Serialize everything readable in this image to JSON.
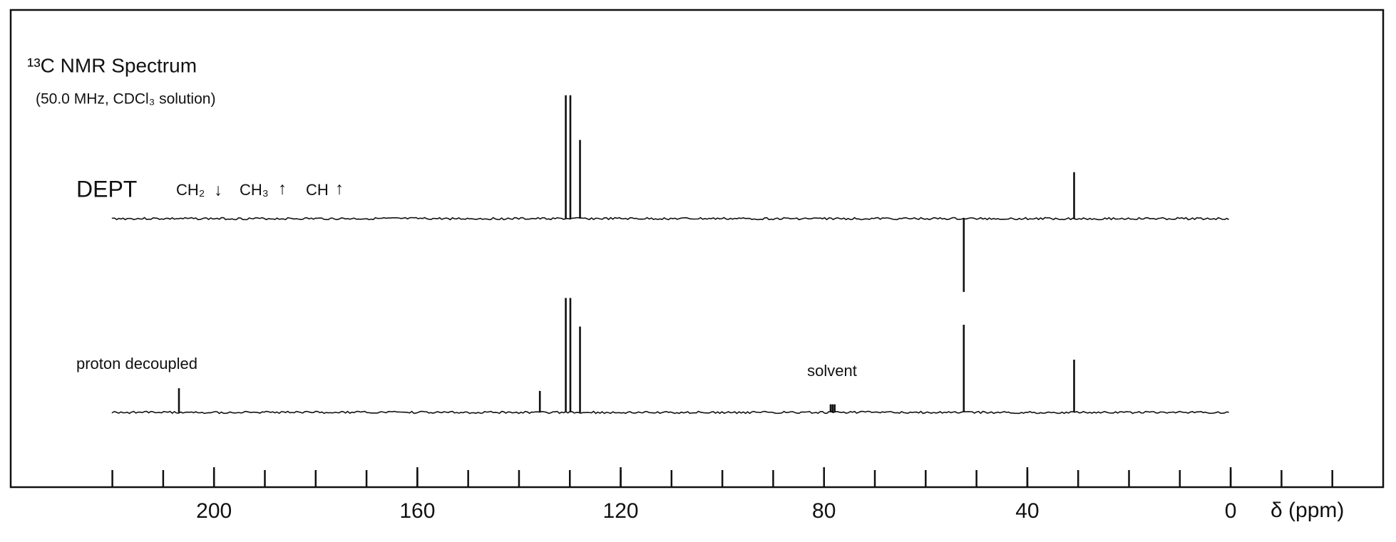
{
  "chart_data": {
    "type": "spectrum",
    "title": "¹³C NMR Spectrum",
    "subtitle": "(50.0 MHz, CDCl₃ solution)",
    "x_label": "δ (ppm)",
    "xlim": [
      240,
      -30
    ],
    "xticks": [
      200,
      160,
      120,
      80,
      40,
      0
    ],
    "xminor_ticks": [
      220,
      210,
      200,
      190,
      180,
      170,
      160,
      150,
      140,
      130,
      120,
      110,
      100,
      90,
      80,
      70,
      60,
      50,
      40,
      30,
      20,
      10,
      0,
      -10,
      -20
    ],
    "dept_legend": [
      "CH₂",
      "CH₃",
      "CH"
    ],
    "annotation": "solvent",
    "color": "#111111",
    "series": [
      {
        "name": "DEPT",
        "x": [
          130.8,
          129.9,
          128.0,
          52.5,
          30.8
        ],
        "values": [
          138,
          138,
          88,
          -82,
          52
        ]
      },
      {
        "name": "proton decoupled",
        "x": [
          206.9,
          135.9,
          130.8,
          129.9,
          128.0,
          78.7,
          78.3,
          77.9,
          52.5,
          30.8
        ],
        "values": [
          27,
          24,
          128,
          128,
          96,
          9,
          9,
          9,
          98,
          59
        ]
      }
    ]
  }
}
